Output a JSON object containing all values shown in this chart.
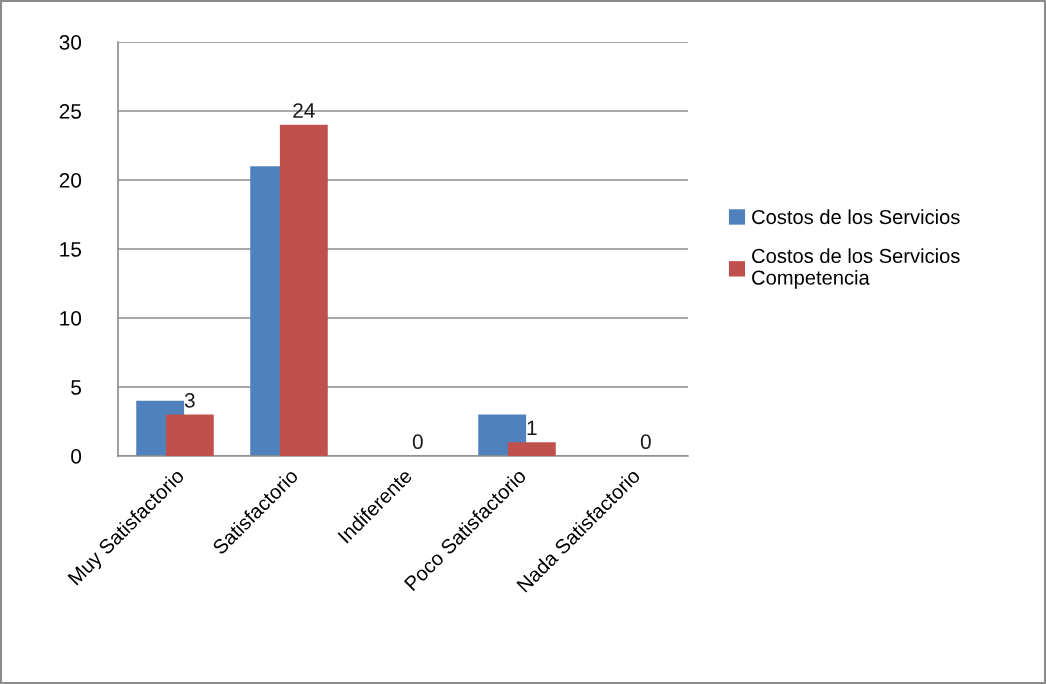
{
  "chart_data": {
    "type": "bar",
    "categories": [
      "Muy Satisfactorio",
      "Satisfactorio",
      "Indiferente",
      "Poco Satisfactorio",
      "Nada Satisfactorio"
    ],
    "series": [
      {
        "name": "Costos de los Servicios",
        "color": "#4f81bd",
        "values": [
          4,
          21,
          0,
          3,
          0
        ]
      },
      {
        "name": "Costos de los Servicios\nCompetencia",
        "color": "#c0504d",
        "values": [
          3,
          24,
          0,
          1,
          0
        ],
        "value_labels": [
          "3",
          "24",
          "0",
          "1",
          "0"
        ]
      }
    ],
    "ylim": [
      0,
      30
    ],
    "yticks": [
      0,
      5,
      10,
      15,
      20,
      25,
      30
    ],
    "grid": "y",
    "legend": "right"
  }
}
